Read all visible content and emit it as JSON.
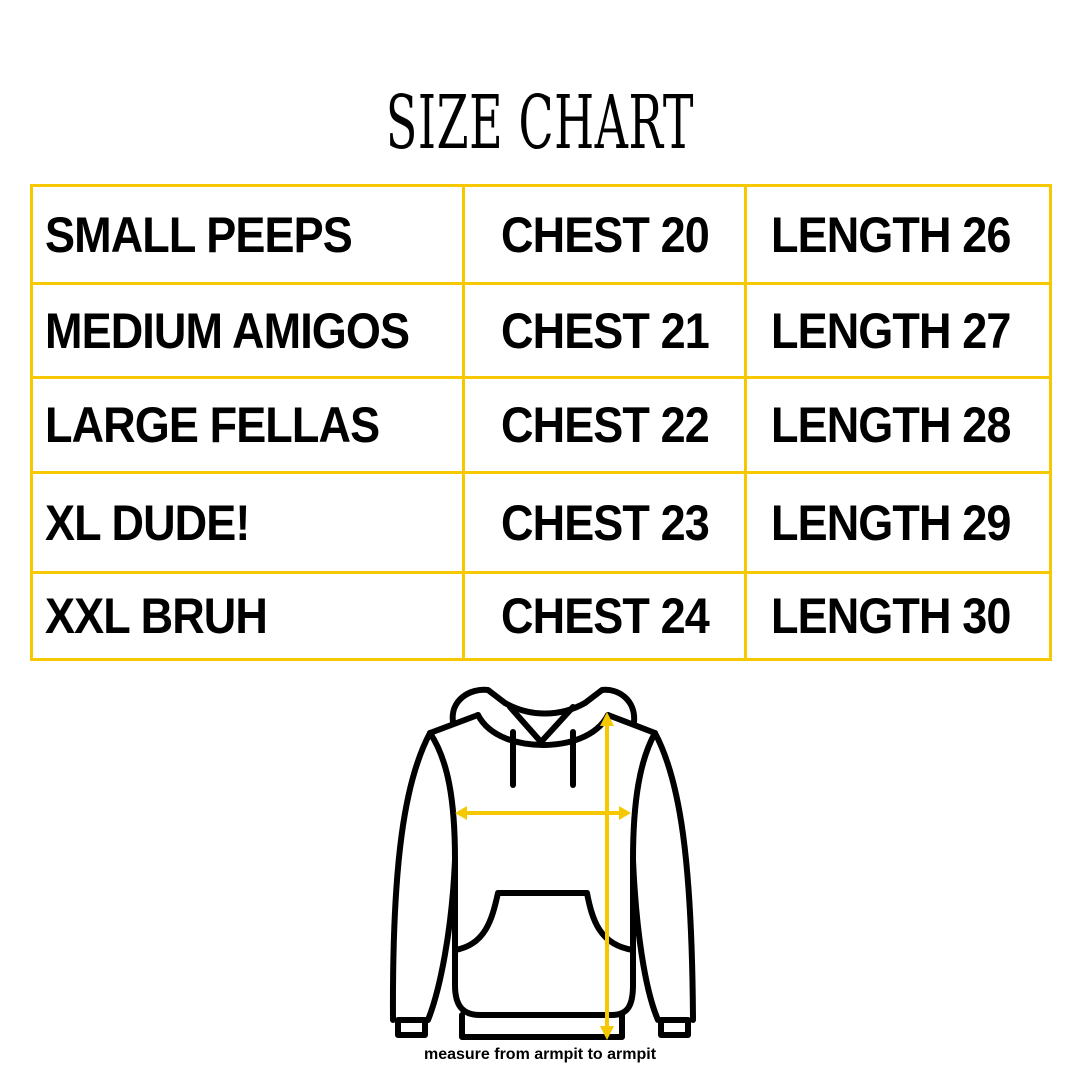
{
  "title": "SIZE CHART",
  "rows": [
    {
      "size": "SMALL PEEPS",
      "chest": "CHEST 20",
      "length": "LENGTH 26"
    },
    {
      "size": "MEDIUM AMIGOS",
      "chest": "CHEST 21",
      "length": "LENGTH 27"
    },
    {
      "size": "LARGE FELLAS",
      "chest": "CHEST 22",
      "length": "LENGTH 28"
    },
    {
      "size": "XL DUDE!",
      "chest": "CHEST 23",
      "length": "LENGTH 29"
    },
    {
      "size": "XXL BRUH",
      "chest": "CHEST 24",
      "length": "LENGTH 30"
    }
  ],
  "note": "measure from armpit to armpit",
  "colors": {
    "accent": "#f5c800",
    "text": "#000000"
  },
  "illustration": "hoodie-with-measurement-arrows"
}
